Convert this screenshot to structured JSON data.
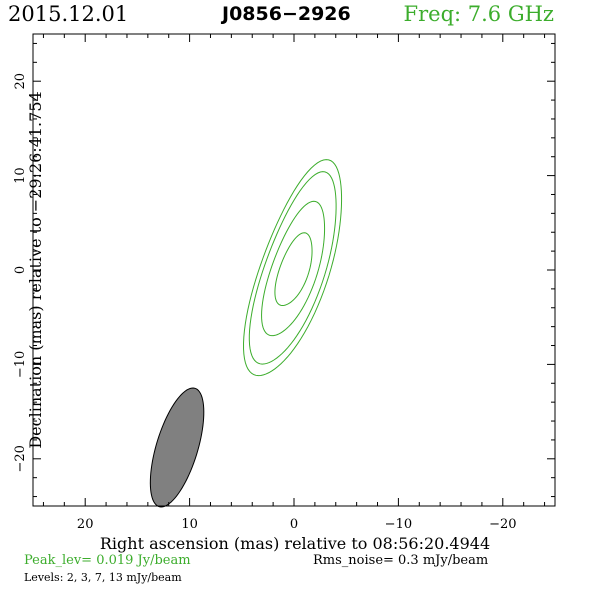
{
  "header": {
    "date": "2015.12.01",
    "source": "J0856−2926",
    "frequency": "Freq: 7.6 GHz"
  },
  "footer": {
    "peak": "Peak_lev=  0.019 Jy/beam",
    "rms": "Rms_noise=   0.3 mJy/beam",
    "levels": "Levels:   2,   3,   7,   13 mJy/beam"
  },
  "colors": {
    "contour": "#3cad2c",
    "beam": "#808080",
    "frame": "#000000"
  },
  "chart_data": {
    "type": "contour",
    "xlabel": "Right ascension (mas) relative to 08:56:20.4944",
    "ylabel": "Declination (mas) relative to −29:26:41.754",
    "xlim": [
      25,
      -25
    ],
    "ylim": [
      -25,
      25
    ],
    "x_ticks": [
      20,
      10,
      0,
      -10,
      -20
    ],
    "y_ticks": [
      20,
      10,
      0,
      -10,
      -20
    ],
    "x_tick_labels": [
      "20",
      "10",
      "0",
      "−10",
      "−20"
    ],
    "y_tick_labels": [
      "20",
      "10",
      "0",
      "−10",
      "−20"
    ],
    "contour_levels_mjy": [
      2,
      3,
      7,
      13
    ],
    "contours": [
      {
        "level": 2,
        "center": [
          0.0,
          0.0
        ],
        "semi_major": 11.9,
        "semi_minor": 3.3,
        "pa_deg": -17
      },
      {
        "level": 3,
        "center": [
          0.0,
          0.0
        ],
        "semi_major": 10.6,
        "semi_minor": 2.9,
        "pa_deg": -17
      },
      {
        "level": 7,
        "center": [
          0.0,
          0.0
        ],
        "semi_major": 7.4,
        "semi_minor": 2.2,
        "pa_deg": -17
      },
      {
        "level": 13,
        "center": [
          0.0,
          0.0
        ],
        "semi_major": 4.0,
        "semi_minor": 1.4,
        "pa_deg": -17
      }
    ],
    "beam": {
      "center": [
        11.2,
        -18.8
      ],
      "semi_major": 6.5,
      "semi_minor": 2.0,
      "pa_deg": -15
    }
  }
}
